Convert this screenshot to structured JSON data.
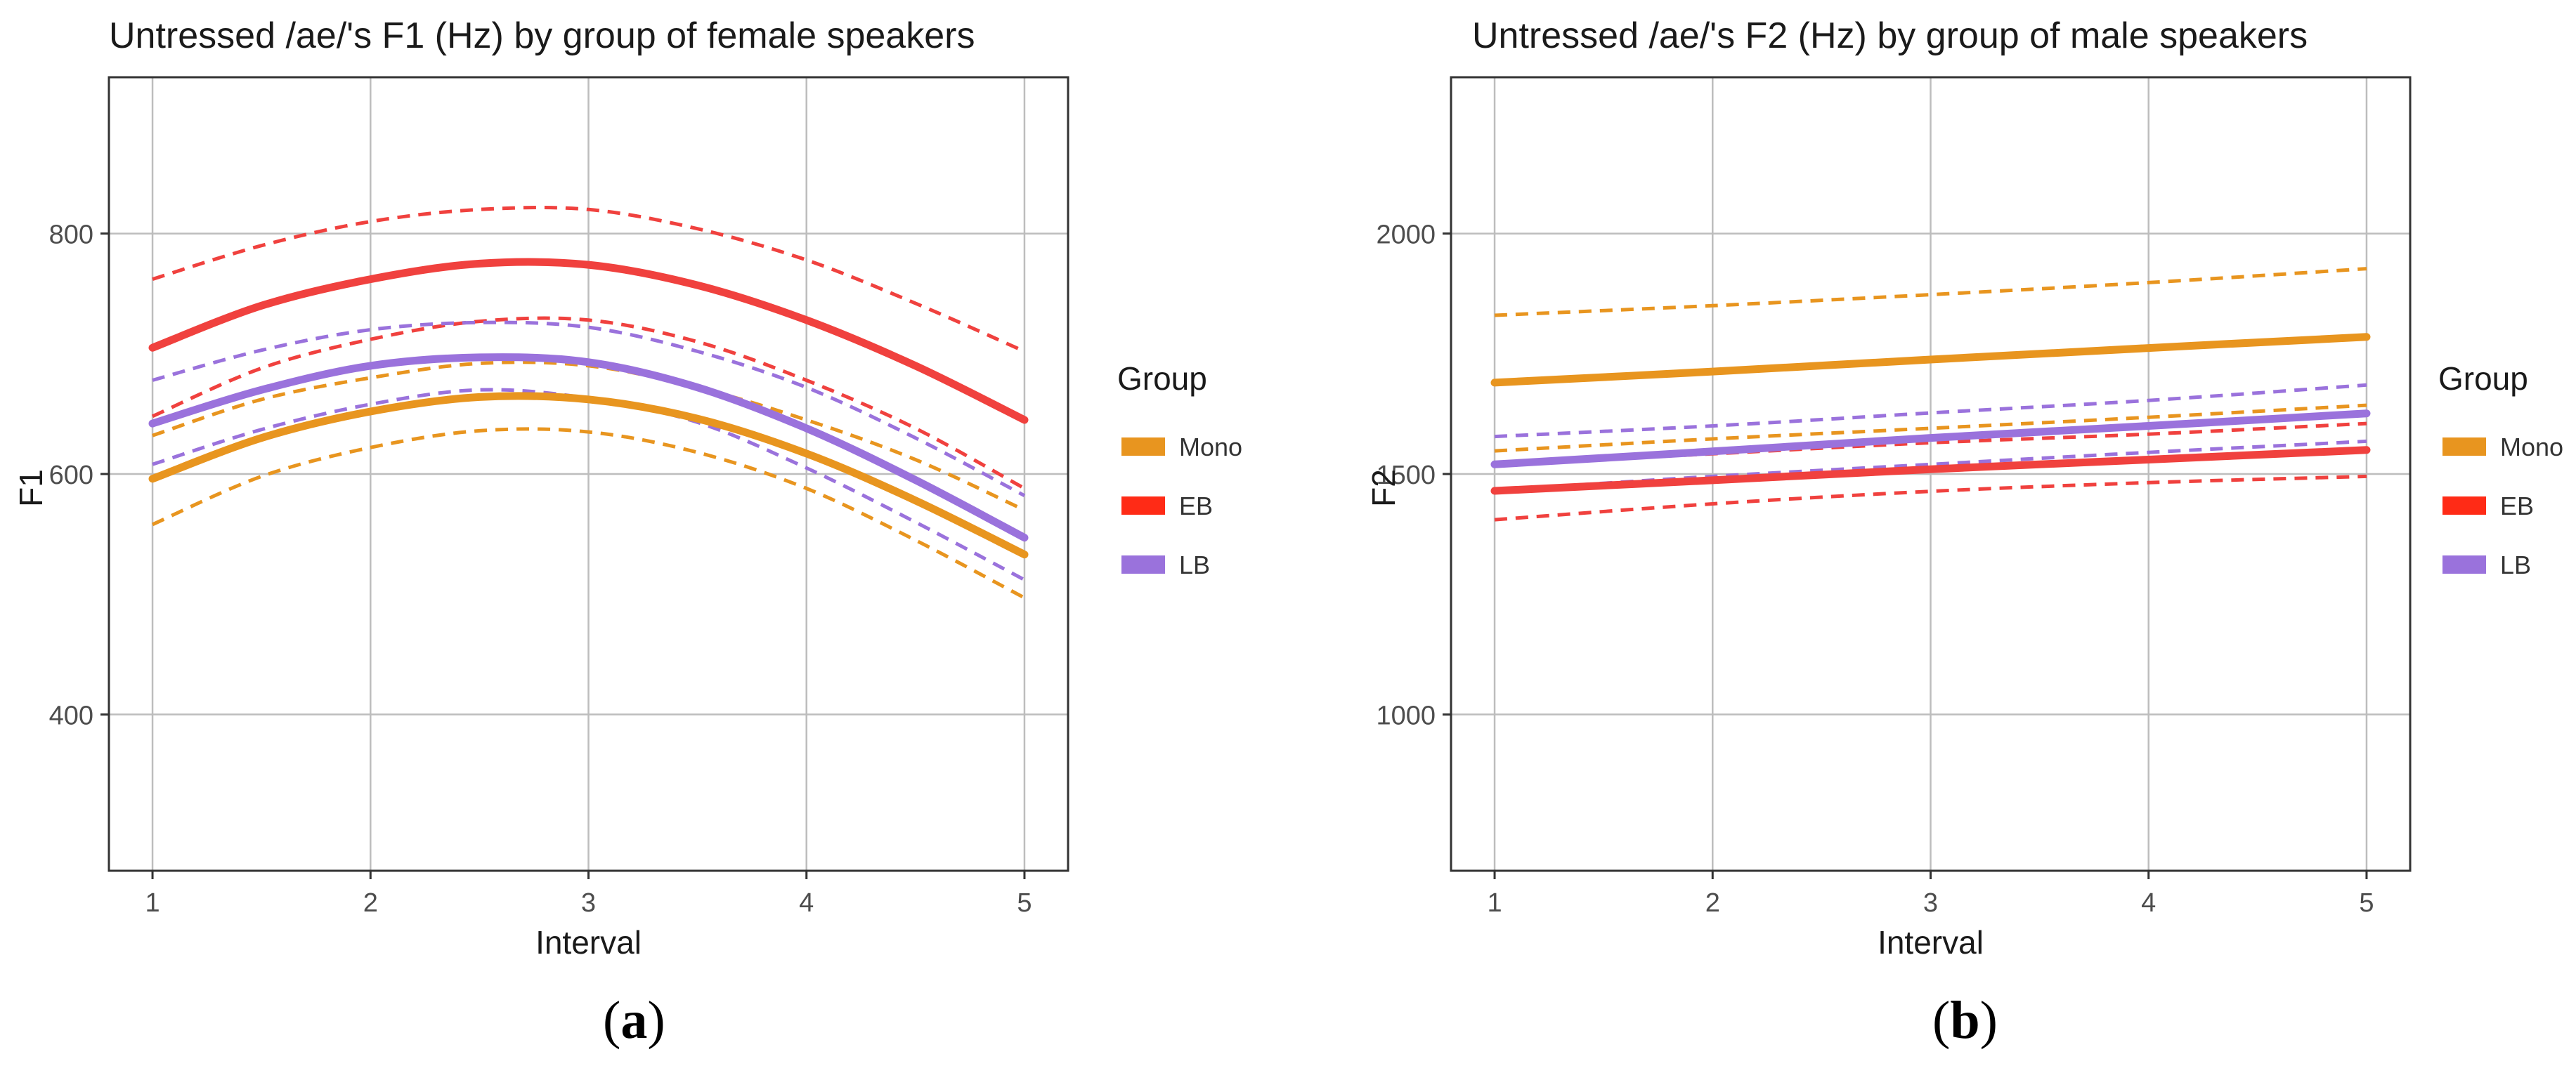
{
  "colors": {
    "mono": "#E8951F",
    "eb": "#F0413E",
    "lb": "#9A72DC",
    "eb_legend": "#FF2B16",
    "grid": "#bdbdbd",
    "panel_border": "#333333",
    "text": "#1a1a1a"
  },
  "legend": {
    "title": "Group",
    "items": [
      {
        "key": "mono",
        "label": "Mono"
      },
      {
        "key": "eb",
        "label": "EB"
      },
      {
        "key": "lb",
        "label": "LB"
      }
    ]
  },
  "captions": {
    "a": "a",
    "b": "b"
  },
  "chart_data": [
    {
      "type": "line",
      "title": "Untressed /ae/'s F1 (Hz) by group of female speakers",
      "xlabel": "Interval",
      "ylabel": "F1",
      "xlim": [
        0.8,
        5.2
      ],
      "ylim": [
        270,
        930
      ],
      "xticks": [
        1,
        2,
        3,
        4,
        5
      ],
      "yticks": [
        400,
        600,
        800
      ],
      "grid": true,
      "legend_position": "right",
      "x": [
        1,
        1.5,
        2,
        2.5,
        3,
        3.5,
        4,
        4.5,
        5
      ],
      "series": [
        {
          "name": "EB",
          "key": "eb",
          "fit": [
            705,
            740,
            762,
            775,
            774,
            757,
            728,
            690,
            645
          ],
          "upper": [
            762,
            790,
            810,
            820,
            820,
            804,
            778,
            742,
            702
          ],
          "lower": [
            648,
            688,
            712,
            727,
            728,
            710,
            678,
            638,
            588
          ]
        },
        {
          "name": "LB",
          "key": "lb",
          "fit": [
            642,
            670,
            690,
            697,
            693,
            672,
            638,
            595,
            547
          ],
          "upper": [
            678,
            703,
            720,
            726,
            722,
            702,
            672,
            630,
            582
          ],
          "lower": [
            608,
            637,
            658,
            670,
            663,
            643,
            605,
            560,
            512
          ]
        },
        {
          "name": "Mono",
          "key": "mono",
          "fit": [
            596,
            630,
            652,
            664,
            662,
            646,
            617,
            578,
            533
          ],
          "upper": [
            632,
            662,
            680,
            692,
            690,
            672,
            645,
            612,
            570
          ],
          "lower": [
            558,
            598,
            622,
            636,
            635,
            618,
            588,
            545,
            497
          ]
        }
      ]
    },
    {
      "type": "line",
      "title": "Untressed /ae/'s F2 (Hz) by group of male speakers",
      "xlabel": "Interval",
      "ylabel": "F2",
      "xlim": [
        0.8,
        5.2
      ],
      "ylim": [
        675,
        2325
      ],
      "xticks": [
        1,
        2,
        3,
        4,
        5
      ],
      "yticks": [
        1000,
        1500,
        2000
      ],
      "grid": true,
      "legend_position": "right",
      "x": [
        1,
        2,
        3,
        4,
        5
      ],
      "series": [
        {
          "name": "Mono",
          "key": "mono",
          "fit": [
            1690,
            1713,
            1738,
            1762,
            1785
          ],
          "upper": [
            1830,
            1850,
            1873,
            1898,
            1927
          ],
          "lower": [
            1548,
            1573,
            1595,
            1618,
            1643
          ]
        },
        {
          "name": "LB",
          "key": "lb",
          "fit": [
            1520,
            1547,
            1575,
            1600,
            1626
          ],
          "upper": [
            1578,
            1600,
            1627,
            1653,
            1685
          ],
          "lower": [
            1466,
            1495,
            1520,
            1545,
            1568
          ]
        },
        {
          "name": "EB",
          "key": "eb",
          "fit": [
            1465,
            1487,
            1510,
            1530,
            1550
          ],
          "upper": [
            1520,
            1542,
            1565,
            1583,
            1605
          ],
          "lower": [
            1405,
            1438,
            1464,
            1482,
            1495
          ]
        }
      ]
    }
  ]
}
